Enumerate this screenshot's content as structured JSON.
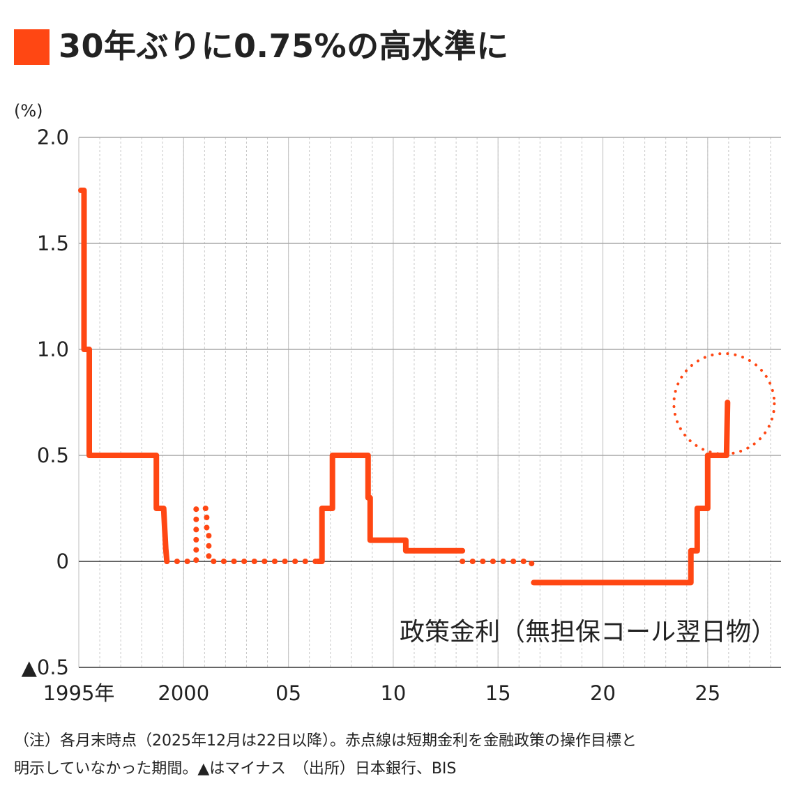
{
  "title": "30年ぶりに0.75%の高水準に",
  "chart_data": {
    "type": "line",
    "title": "30年ぶりに0.75%の高水準に",
    "ylabel": "(%)",
    "ylim": [
      -0.5,
      2.0
    ],
    "yticks": [
      {
        "value": 2.0,
        "label": "2.0"
      },
      {
        "value": 1.5,
        "label": "1.5"
      },
      {
        "value": 1.0,
        "label": "1.0"
      },
      {
        "value": 0.5,
        "label": "0.5"
      },
      {
        "value": 0,
        "label": "0"
      },
      {
        "value": -0.5,
        "label": "▲0.5"
      }
    ],
    "xlim": [
      1995,
      2028.5
    ],
    "xticks": [
      {
        "value": 1995,
        "label": "1995年"
      },
      {
        "value": 2000,
        "label": "2000"
      },
      {
        "value": 2005,
        "label": "05"
      },
      {
        "value": 2010,
        "label": "10"
      },
      {
        "value": 2015,
        "label": "15"
      },
      {
        "value": 2020,
        "label": "20"
      },
      {
        "value": 2025,
        "label": "25"
      }
    ],
    "grid": true,
    "series": [
      {
        "name": "政策金利（無担保コール翌日物）",
        "color": "#ff4713",
        "segments": [
          {
            "style": "solid",
            "points": [
              [
                1995.1,
                1.75
              ],
              [
                1995.25,
                1.75
              ],
              [
                1995.25,
                1.0
              ],
              [
                1995.5,
                1.0
              ],
              [
                1995.5,
                0.5
              ],
              [
                1998.7,
                0.5
              ],
              [
                1998.7,
                0.25
              ],
              [
                1999.05,
                0.25
              ],
              [
                1999.1,
                0.15
              ],
              [
                1999.15,
                0.06
              ],
              [
                1999.2,
                0.0
              ]
            ]
          },
          {
            "style": "dotted",
            "points": [
              [
                1999.2,
                0.0
              ],
              [
                2000.6,
                0.0
              ],
              [
                2000.6,
                0.25
              ],
              [
                2001.1,
                0.25
              ],
              [
                2001.1,
                0.15
              ],
              [
                2001.2,
                0.15
              ],
              [
                2001.2,
                0.0
              ],
              [
                2006.4,
                0.0
              ]
            ]
          },
          {
            "style": "solid",
            "points": [
              [
                2006.4,
                0.0
              ],
              [
                2006.6,
                0.0
              ],
              [
                2006.6,
                0.25
              ],
              [
                2007.1,
                0.25
              ],
              [
                2007.1,
                0.5
              ],
              [
                2008.8,
                0.5
              ],
              [
                2008.8,
                0.3
              ],
              [
                2008.9,
                0.3
              ],
              [
                2008.9,
                0.1
              ],
              [
                2010.6,
                0.1
              ],
              [
                2010.6,
                0.05
              ],
              [
                2013.3,
                0.05
              ]
            ]
          },
          {
            "style": "dotted",
            "points": [
              [
                2013.3,
                0.0
              ],
              [
                2016.6,
                0.0
              ],
              [
                2016.6,
                -0.05
              ]
            ]
          },
          {
            "style": "solid",
            "points": [
              [
                2016.7,
                -0.1
              ],
              [
                2024.2,
                -0.1
              ],
              [
                2024.2,
                0.05
              ],
              [
                2024.5,
                0.05
              ],
              [
                2024.5,
                0.25
              ],
              [
                2025.0,
                0.25
              ],
              [
                2025.0,
                0.5
              ],
              [
                2025.9,
                0.5
              ],
              [
                2025.95,
                0.75
              ]
            ]
          }
        ]
      }
    ],
    "highlight": {
      "x": 2025.95,
      "y": 0.75,
      "style": "dotted-circle"
    },
    "annotation": "政策金利（無担保コール翌日物）"
  },
  "notes": [
    "（注）各月末時点（2025年12月は22日以降）。赤点線は短期金利を金融政策の操作目標と",
    "明示していなかった期間。▲はマイナス　（出所）日本銀行、BIS"
  ]
}
